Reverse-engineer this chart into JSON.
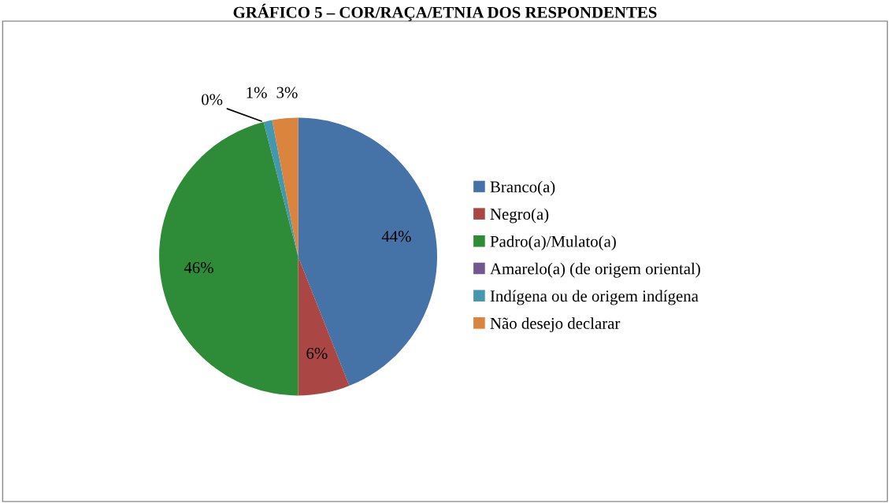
{
  "chart_data": {
    "type": "pie",
    "title": "GRÁFICO 5 – COR/RAÇA/ETNIA DOS RESPONDENTES",
    "categories": [
      "Branco(a)",
      "Negro(a)",
      "Padro(a)/Mulato(a)",
      "Amarelo(a) (de origem oriental)",
      "Indígena ou de origem indígena",
      "Não desejo declarar"
    ],
    "values": [
      44,
      6,
      46,
      0,
      1,
      3
    ],
    "colors": [
      "#4572a7",
      "#aa4643",
      "#2e8b38",
      "#71588f",
      "#4198af",
      "#db843d"
    ],
    "value_labels": [
      "44%",
      "6%",
      "46%",
      "0%",
      "1%",
      "3%"
    ],
    "legend": "right"
  }
}
